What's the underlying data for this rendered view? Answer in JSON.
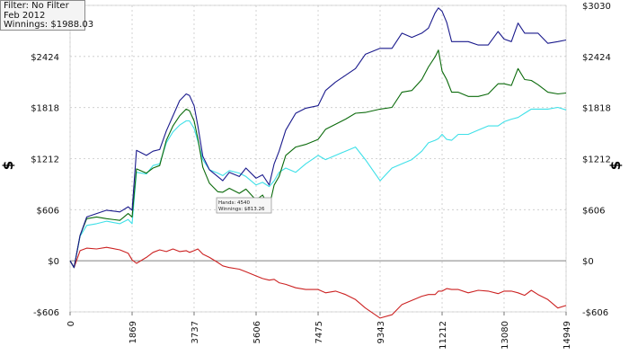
{
  "info_box": {
    "filter": "Filter: No Filter",
    "period": "Feb 2012",
    "winnings": "Winnings: $1988.03"
  },
  "tooltip": {
    "hands": "Hands: 4540",
    "winnings": "Winnings: $813.26"
  },
  "colors": {
    "total": "#1a1a8c",
    "green": "#0b6a0b",
    "cyan": "#3fe0e8",
    "red": "#cc2222",
    "grid": "#c8c8c8",
    "zero_line": "#808080"
  },
  "chart_data": {
    "type": "line",
    "title": "",
    "xlabel": "",
    "ylabel": "$",
    "xlim": [
      0,
      14949
    ],
    "ylim": [
      -606,
      3030
    ],
    "x_ticks": [
      0,
      1869,
      3737,
      5606,
      7475,
      9343,
      11212,
      13080,
      14949
    ],
    "y_ticks": [
      -606,
      0,
      606,
      1212,
      1818,
      2424,
      3030
    ],
    "y_tick_labels": [
      "-$606",
      "$0",
      "$606",
      "$1212",
      "$1818",
      "$2424",
      "$3030"
    ],
    "grid": true,
    "legend": "none",
    "series": [
      {
        "color_key": "total",
        "x": [
          0,
          120,
          300,
          500,
          800,
          1100,
          1500,
          1750,
          1869,
          2000,
          2300,
          2500,
          2700,
          2900,
          3100,
          3300,
          3500,
          3600,
          3737,
          3850,
          4000,
          4200,
          4450,
          4600,
          4800,
          5100,
          5300,
          5606,
          5800,
          6000,
          6150,
          6300,
          6500,
          6800,
          7100,
          7475,
          7700,
          8000,
          8300,
          8600,
          8900,
          9343,
          9700,
          10000,
          10300,
          10600,
          10800,
          11000,
          11100,
          11212,
          11350,
          11500,
          11700,
          12000,
          12300,
          12600,
          12900,
          13080,
          13300,
          13500,
          13700,
          13900,
          14100,
          14400,
          14700,
          14949
        ],
        "y": [
          0,
          -80,
          300,
          520,
          560,
          600,
          580,
          640,
          600,
          1310,
          1250,
          1300,
          1320,
          1540,
          1720,
          1900,
          1980,
          1960,
          1840,
          1600,
          1240,
          1080,
          1000,
          950,
          1050,
          1000,
          1100,
          980,
          1020,
          900,
          1150,
          1300,
          1550,
          1750,
          1810,
          1840,
          2020,
          2120,
          2200,
          2280,
          2450,
          2520,
          2520,
          2700,
          2650,
          2700,
          2760,
          2940,
          3000,
          2960,
          2830,
          2600,
          2600,
          2600,
          2560,
          2560,
          2720,
          2630,
          2600,
          2820,
          2700,
          2700,
          2700,
          2580,
          2600,
          2620
        ]
      },
      {
        "color_key": "green",
        "x": [
          0,
          120,
          300,
          500,
          800,
          1100,
          1500,
          1750,
          1869,
          2000,
          2300,
          2500,
          2700,
          2900,
          3100,
          3300,
          3500,
          3600,
          3737,
          3850,
          4000,
          4200,
          4450,
          4600,
          4800,
          5100,
          5300,
          5606,
          5800,
          6000,
          6150,
          6300,
          6500,
          6800,
          7100,
          7475,
          7700,
          8000,
          8300,
          8600,
          8900,
          9343,
          9700,
          10000,
          10300,
          10600,
          10800,
          11000,
          11100,
          11212,
          11350,
          11500,
          11700,
          12000,
          12300,
          12600,
          12900,
          13080,
          13300,
          13500,
          13700,
          13900,
          14100,
          14400,
          14700,
          14949
        ],
        "y": [
          0,
          -80,
          300,
          500,
          520,
          500,
          480,
          560,
          520,
          1090,
          1040,
          1100,
          1130,
          1430,
          1600,
          1720,
          1800,
          1780,
          1660,
          1450,
          1110,
          920,
          820,
          813,
          860,
          800,
          850,
          720,
          780,
          640,
          900,
          1000,
          1250,
          1350,
          1380,
          1440,
          1560,
          1620,
          1680,
          1750,
          1760,
          1800,
          1820,
          2000,
          2020,
          2150,
          2300,
          2420,
          2500,
          2250,
          2150,
          2000,
          2000,
          1950,
          1950,
          1980,
          2100,
          2100,
          2080,
          2280,
          2150,
          2140,
          2090,
          2000,
          1980,
          1990
        ]
      },
      {
        "color_key": "cyan",
        "x": [
          0,
          120,
          300,
          500,
          800,
          1100,
          1500,
          1750,
          1869,
          2000,
          2300,
          2500,
          2700,
          2900,
          3100,
          3300,
          3500,
          3600,
          3737,
          3850,
          4000,
          4200,
          4450,
          4600,
          4800,
          5100,
          5300,
          5606,
          5800,
          6000,
          6150,
          6300,
          6500,
          6800,
          7100,
          7475,
          7700,
          8000,
          8300,
          8600,
          8900,
          9343,
          9700,
          10000,
          10300,
          10600,
          10800,
          11000,
          11100,
          11212,
          11350,
          11500,
          11700,
          12000,
          12300,
          12600,
          12900,
          13080,
          13300,
          13500,
          13700,
          13900,
          14100,
          14400,
          14700,
          14949
        ],
        "y": [
          0,
          -80,
          290,
          420,
          440,
          470,
          440,
          490,
          440,
          1050,
          1030,
          1130,
          1150,
          1400,
          1530,
          1610,
          1660,
          1660,
          1570,
          1420,
          1200,
          1080,
          1040,
          1010,
          1070,
          1040,
          1000,
          900,
          930,
          880,
          950,
          1050,
          1100,
          1050,
          1150,
          1250,
          1200,
          1250,
          1300,
          1350,
          1200,
          950,
          1100,
          1150,
          1200,
          1300,
          1400,
          1430,
          1450,
          1500,
          1440,
          1430,
          1500,
          1500,
          1550,
          1600,
          1600,
          1650,
          1680,
          1700,
          1750,
          1800,
          1800,
          1800,
          1820,
          1790
        ]
      },
      {
        "color_key": "red",
        "x": [
          0,
          120,
          300,
          500,
          800,
          1100,
          1500,
          1750,
          1869,
          2000,
          2300,
          2500,
          2700,
          2900,
          3100,
          3300,
          3500,
          3600,
          3737,
          3850,
          4000,
          4200,
          4450,
          4600,
          4800,
          5100,
          5300,
          5606,
          5800,
          6000,
          6150,
          6300,
          6500,
          6800,
          7100,
          7475,
          7700,
          8000,
          8300,
          8600,
          8900,
          9343,
          9700,
          10000,
          10300,
          10600,
          10800,
          11000,
          11100,
          11212,
          11350,
          11500,
          11700,
          12000,
          12300,
          12600,
          12900,
          13080,
          13300,
          13500,
          13700,
          13900,
          14100,
          14400,
          14700,
          14949
        ],
        "y": [
          0,
          -80,
          120,
          150,
          140,
          160,
          130,
          90,
          10,
          -30,
          40,
          100,
          130,
          110,
          140,
          110,
          120,
          100,
          120,
          140,
          80,
          40,
          -20,
          -60,
          -80,
          -100,
          -130,
          -180,
          -210,
          -230,
          -220,
          -260,
          -280,
          -320,
          -340,
          -340,
          -380,
          -360,
          -400,
          -460,
          -560,
          -680,
          -640,
          -520,
          -470,
          -420,
          -400,
          -400,
          -360,
          -360,
          -330,
          -340,
          -340,
          -380,
          -350,
          -360,
          -390,
          -360,
          -360,
          -380,
          -410,
          -350,
          -400,
          -460,
          -560,
          -530
        ]
      }
    ]
  }
}
